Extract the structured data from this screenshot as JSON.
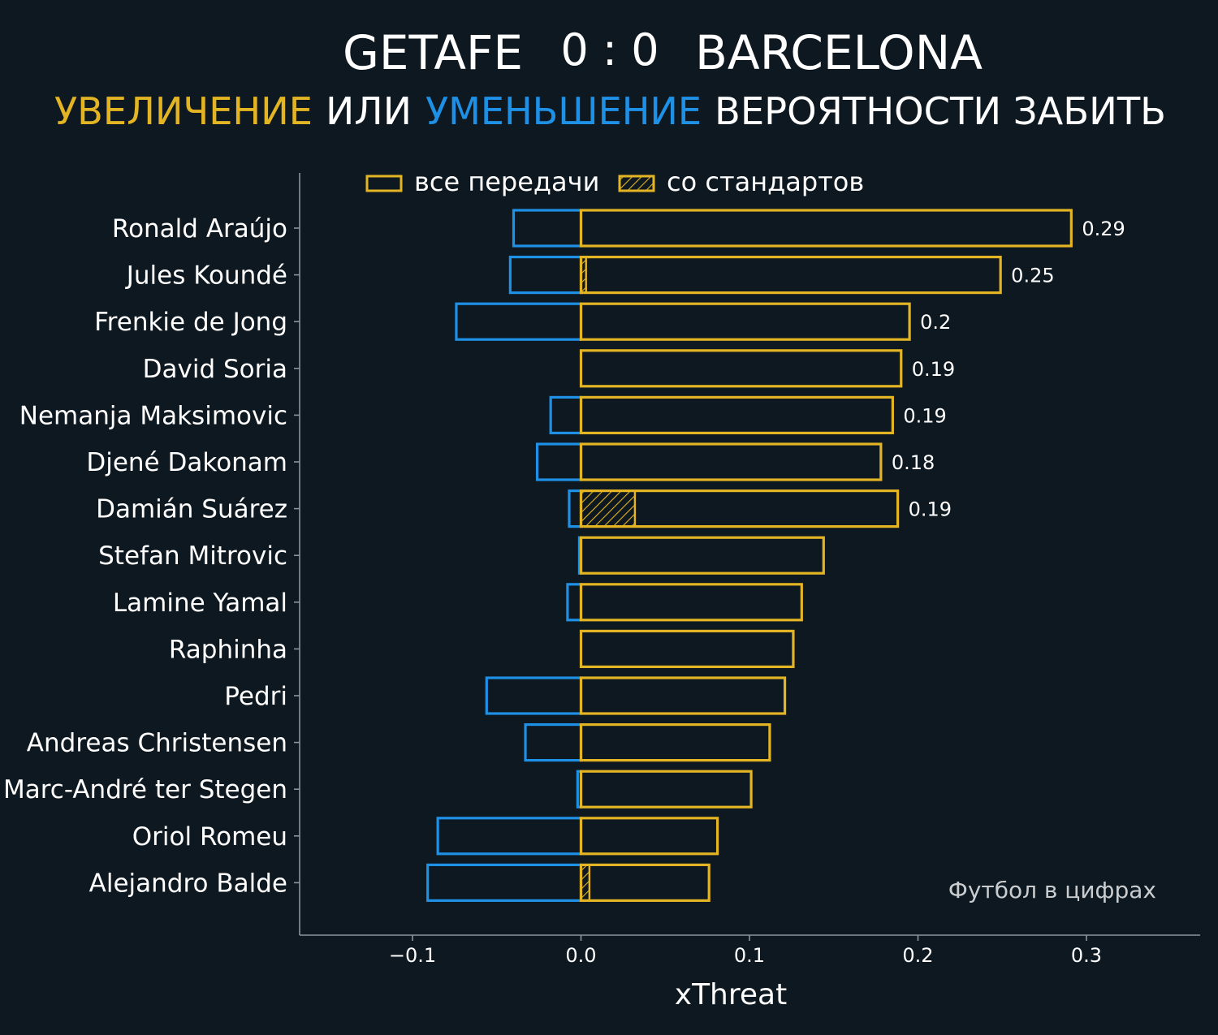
{
  "header": {
    "home_team": "GETAFE",
    "score": "0 : 0",
    "away_team": "BARCELONA",
    "subtitle_increase": "УВЕЛИЧЕНИЕ",
    "subtitle_or": "ИЛИ",
    "subtitle_decrease": "УМЕНЬШЕНИЕ",
    "subtitle_rest": "ВЕРОЯТНОСТИ ЗАБИТЬ"
  },
  "watermark": "Футбол в цифрах",
  "colors": {
    "background": "#0e1820",
    "increase": "#e3b423",
    "decrease": "#1e90e6",
    "text": "#ffffff",
    "axis": "#8a959c",
    "watermark": "#c9cdd0"
  },
  "chart_data": {
    "type": "bar",
    "orientation": "horizontal",
    "xlabel": "xThreat",
    "xlim": [
      -0.165,
      0.37
    ],
    "xticks": [
      -0.1,
      0.0,
      0.1,
      0.2,
      0.3
    ],
    "xtick_labels": [
      "−0.1",
      "0.0",
      "0.1",
      "0.2",
      "0.3"
    ],
    "legend": {
      "placement": "top",
      "items": [
        {
          "label": "все передачи",
          "style": "outline"
        },
        {
          "label": "со стандартов",
          "style": "hatched"
        }
      ]
    },
    "categories": [
      "Ronald Araújo",
      "Jules Koundé",
      "Frenkie de Jong",
      "David Soria",
      "Nemanja Maksimovic",
      "Djené Dakonam",
      "Damián Suárez",
      "Stefan Mitrovic",
      "Lamine Yamal",
      "Raphinha",
      "Pedri",
      "Andreas Christensen",
      "Marc-André ter Stegen",
      "Oriol Romeu",
      "Alejandro Balde"
    ],
    "series": [
      {
        "key": "positive",
        "values": [
          0.291,
          0.249,
          0.195,
          0.19,
          0.185,
          0.178,
          0.188,
          0.144,
          0.131,
          0.126,
          0.121,
          0.112,
          0.101,
          0.081,
          0.076
        ]
      },
      {
        "key": "negative",
        "values": [
          -0.04,
          -0.042,
          -0.074,
          0.0,
          -0.018,
          -0.026,
          -0.007,
          -0.001,
          -0.008,
          0.0,
          -0.056,
          -0.033,
          -0.002,
          -0.085,
          -0.091
        ]
      },
      {
        "key": "set_pieces",
        "values": [
          0.0,
          0.003,
          0.0,
          0.0,
          0.0,
          0.0,
          0.032,
          0.0,
          0.0,
          0.0,
          0.0,
          0.0,
          0.0,
          0.0,
          0.005
        ]
      }
    ],
    "data_labels": [
      "0.29",
      "0.25",
      "0.2",
      "0.19",
      "0.19",
      "0.18",
      "0.19",
      "",
      "",
      "",
      "",
      "",
      "",
      "",
      ""
    ]
  }
}
